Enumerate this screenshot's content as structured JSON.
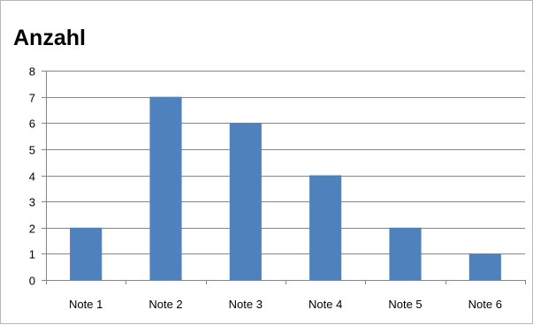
{
  "chart_data": {
    "type": "bar",
    "title": "Anzahl",
    "categories": [
      "Note 1",
      "Note 2",
      "Note 3",
      "Note 4",
      "Note 5",
      "Note 6"
    ],
    "values": [
      2,
      7,
      6,
      4,
      2,
      1
    ],
    "xlabel": "",
    "ylabel": "",
    "ylim": [
      0,
      8
    ],
    "yticks": [
      "0",
      "1",
      "2",
      "3",
      "4",
      "5",
      "6",
      "7",
      "8"
    ],
    "grid": true,
    "legend": "none",
    "bar_color": "#4f81bd",
    "gridline_color": "#868686"
  }
}
